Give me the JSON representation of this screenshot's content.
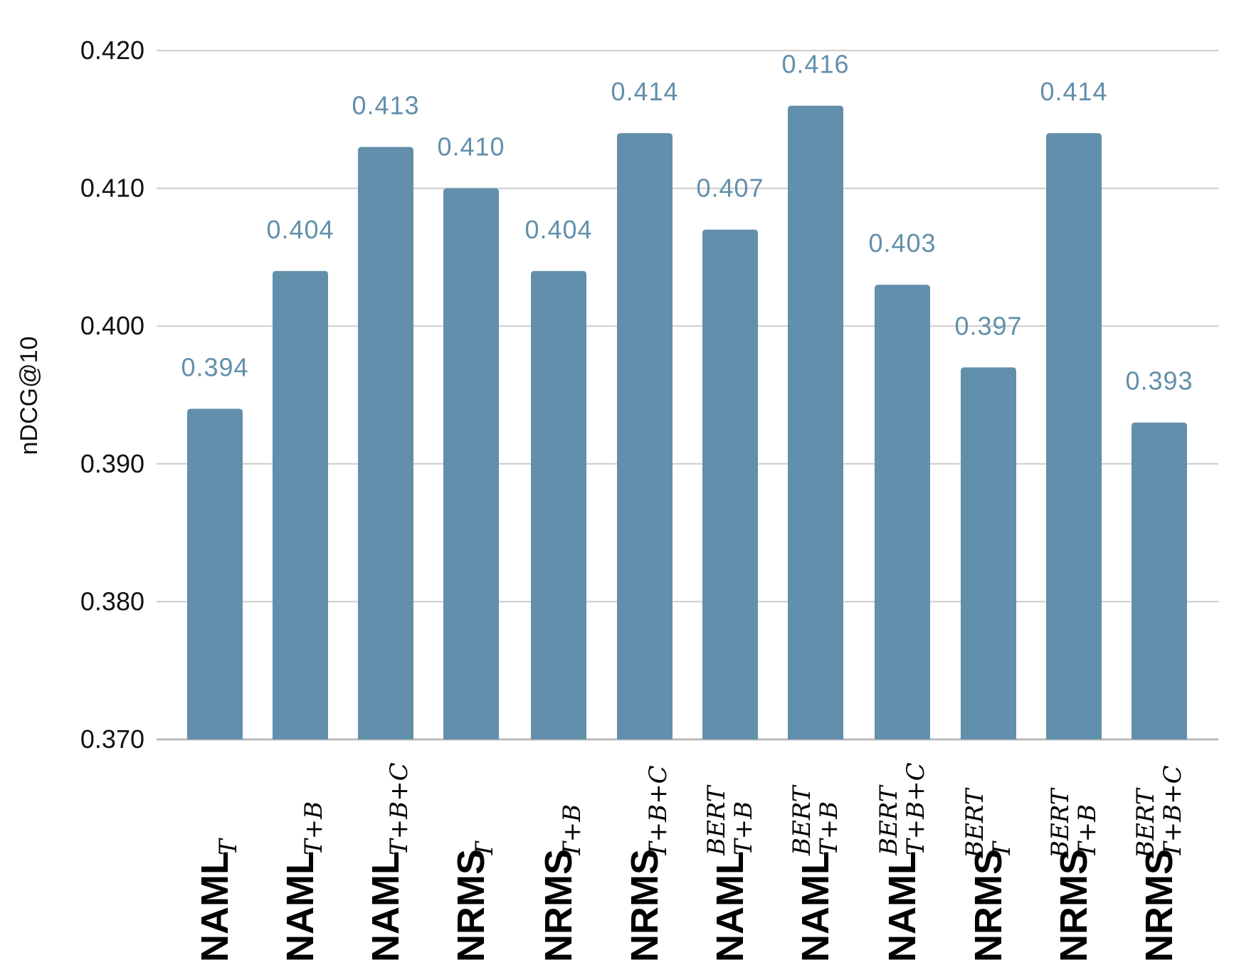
{
  "colors": {
    "bar": "#628fab",
    "label": "#628fab",
    "grid": "#cccccc",
    "axis": "#bbbbbb"
  },
  "chart_data": {
    "type": "bar",
    "ylabel": "nDCG@10",
    "ylim": [
      0.37,
      0.42
    ],
    "yticks": [
      "0.420",
      "0.410",
      "0.400",
      "0.390",
      "0.380",
      "0.370"
    ],
    "grid": true,
    "categories": [
      {
        "main": "NAML",
        "sub": "T",
        "sup": ""
      },
      {
        "main": "NAML",
        "sub": "T+B",
        "sup": ""
      },
      {
        "main": "NAML",
        "sub": "T+B+C",
        "sup": ""
      },
      {
        "main": "NRMS",
        "sub": "T",
        "sup": ""
      },
      {
        "main": "NRMS",
        "sub": "T+B",
        "sup": ""
      },
      {
        "main": "NRMS",
        "sub": "T+B+C",
        "sup": ""
      },
      {
        "main": "NAML",
        "sub": "T+B",
        "sup": "BERT"
      },
      {
        "main": "NAML",
        "sub": "T+B",
        "sup": "BERT"
      },
      {
        "main": "NAML",
        "sub": "T+B+C",
        "sup": "BERT"
      },
      {
        "main": "NRMS",
        "sub": "T",
        "sup": "BERT"
      },
      {
        "main": "NRMS",
        "sub": "T+B",
        "sup": "BERT"
      },
      {
        "main": "NRMS",
        "sub": "T+B+C",
        "sup": "BERT"
      }
    ],
    "values": [
      0.394,
      0.404,
      0.413,
      0.41,
      0.404,
      0.414,
      0.407,
      0.416,
      0.403,
      0.397,
      0.414,
      0.393
    ],
    "value_labels": [
      "0.394",
      "0.404",
      "0.413",
      "0.410",
      "0.404",
      "0.414",
      "0.407",
      "0.416",
      "0.403",
      "0.397",
      "0.414",
      "0.393"
    ]
  }
}
